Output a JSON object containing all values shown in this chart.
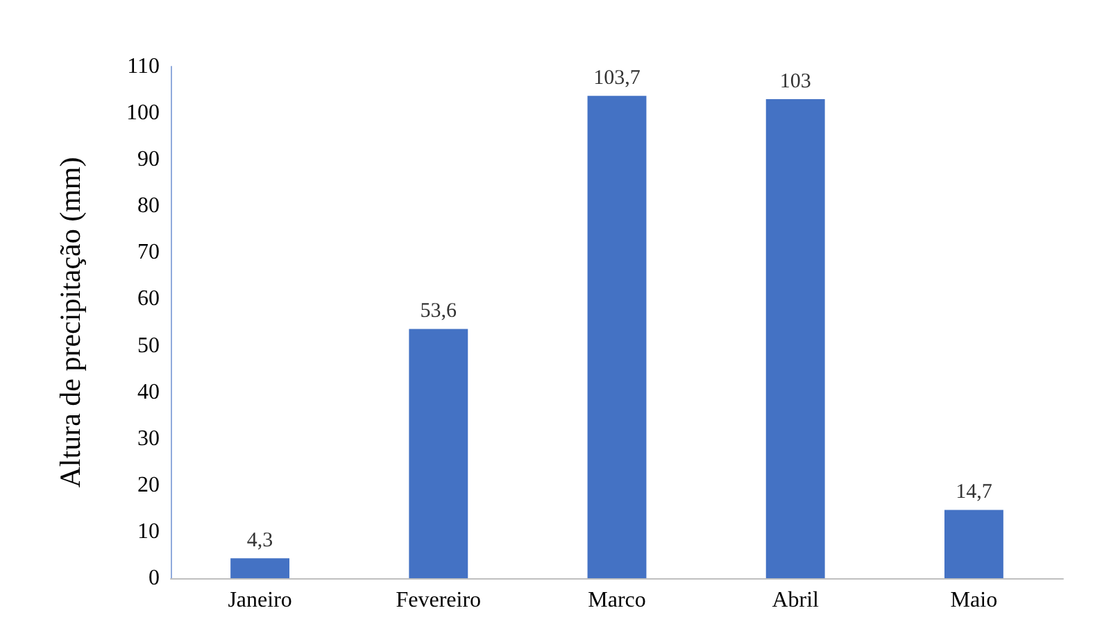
{
  "chart_data": {
    "type": "bar",
    "ylabel": "Altura de precipitação (mm)",
    "categories": [
      "Janeiro",
      "Fevereiro",
      "Marco",
      "Abril",
      "Maio"
    ],
    "values": [
      4.3,
      53.6,
      103.7,
      103,
      14.7
    ],
    "value_labels": [
      "4,3",
      "53,6",
      "103,7",
      "103",
      "14,7"
    ],
    "color": "#4472c4",
    "ylim": [
      0,
      110
    ],
    "yticks": [
      0,
      10,
      20,
      30,
      40,
      50,
      60,
      70,
      80,
      90,
      100,
      110
    ],
    "grid": false
  }
}
